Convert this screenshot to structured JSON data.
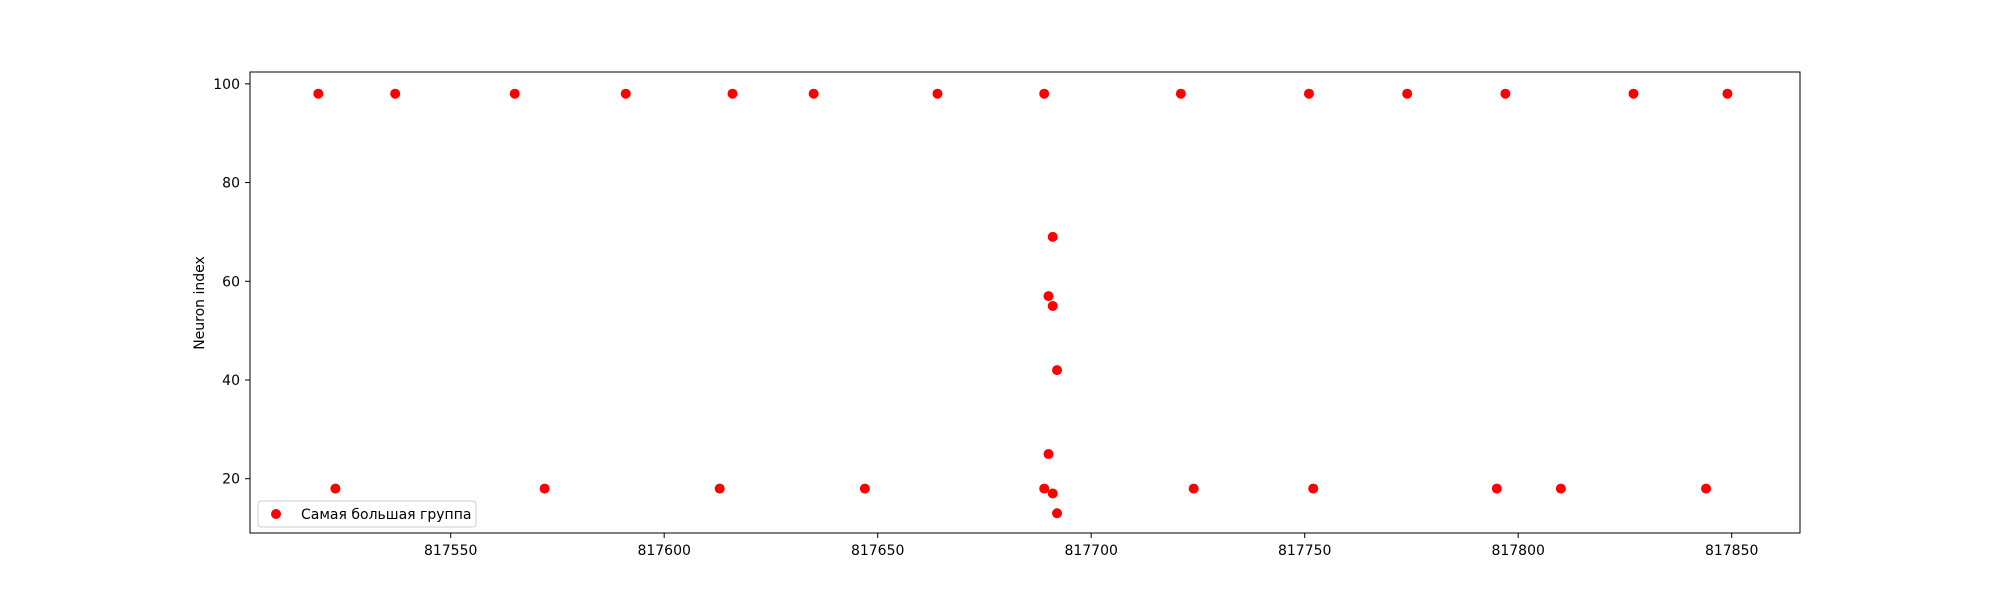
{
  "chart_data": {
    "type": "scatter",
    "title": "",
    "xlabel": "",
    "ylabel": "Neuron index",
    "xlim": [
      817503,
      817866
    ],
    "ylim": [
      9,
      102.4
    ],
    "xticks": [
      817550,
      817600,
      817650,
      817700,
      817750,
      817800,
      817850
    ],
    "yticks": [
      20,
      40,
      60,
      80,
      100
    ],
    "grid": false,
    "legend_position": "lower-left",
    "series": [
      {
        "name": "Самая большая группа",
        "color": "#ff0000",
        "marker": "circle",
        "points": [
          {
            "x": 817519,
            "y": 98
          },
          {
            "x": 817537,
            "y": 98
          },
          {
            "x": 817565,
            "y": 98
          },
          {
            "x": 817591,
            "y": 98
          },
          {
            "x": 817616,
            "y": 98
          },
          {
            "x": 817635,
            "y": 98
          },
          {
            "x": 817664,
            "y": 98
          },
          {
            "x": 817689,
            "y": 98
          },
          {
            "x": 817721,
            "y": 98
          },
          {
            "x": 817751,
            "y": 98
          },
          {
            "x": 817774,
            "y": 98
          },
          {
            "x": 817797,
            "y": 98
          },
          {
            "x": 817827,
            "y": 98
          },
          {
            "x": 817849,
            "y": 98
          },
          {
            "x": 817691,
            "y": 69
          },
          {
            "x": 817690,
            "y": 57
          },
          {
            "x": 817691,
            "y": 55
          },
          {
            "x": 817692,
            "y": 42
          },
          {
            "x": 817690,
            "y": 25
          },
          {
            "x": 817523,
            "y": 18
          },
          {
            "x": 817572,
            "y": 18
          },
          {
            "x": 817613,
            "y": 18
          },
          {
            "x": 817647,
            "y": 18
          },
          {
            "x": 817689,
            "y": 18
          },
          {
            "x": 817724,
            "y": 18
          },
          {
            "x": 817752,
            "y": 18
          },
          {
            "x": 817795,
            "y": 18
          },
          {
            "x": 817810,
            "y": 18
          },
          {
            "x": 817844,
            "y": 18
          },
          {
            "x": 817691,
            "y": 17
          },
          {
            "x": 817692,
            "y": 13
          }
        ]
      }
    ]
  }
}
